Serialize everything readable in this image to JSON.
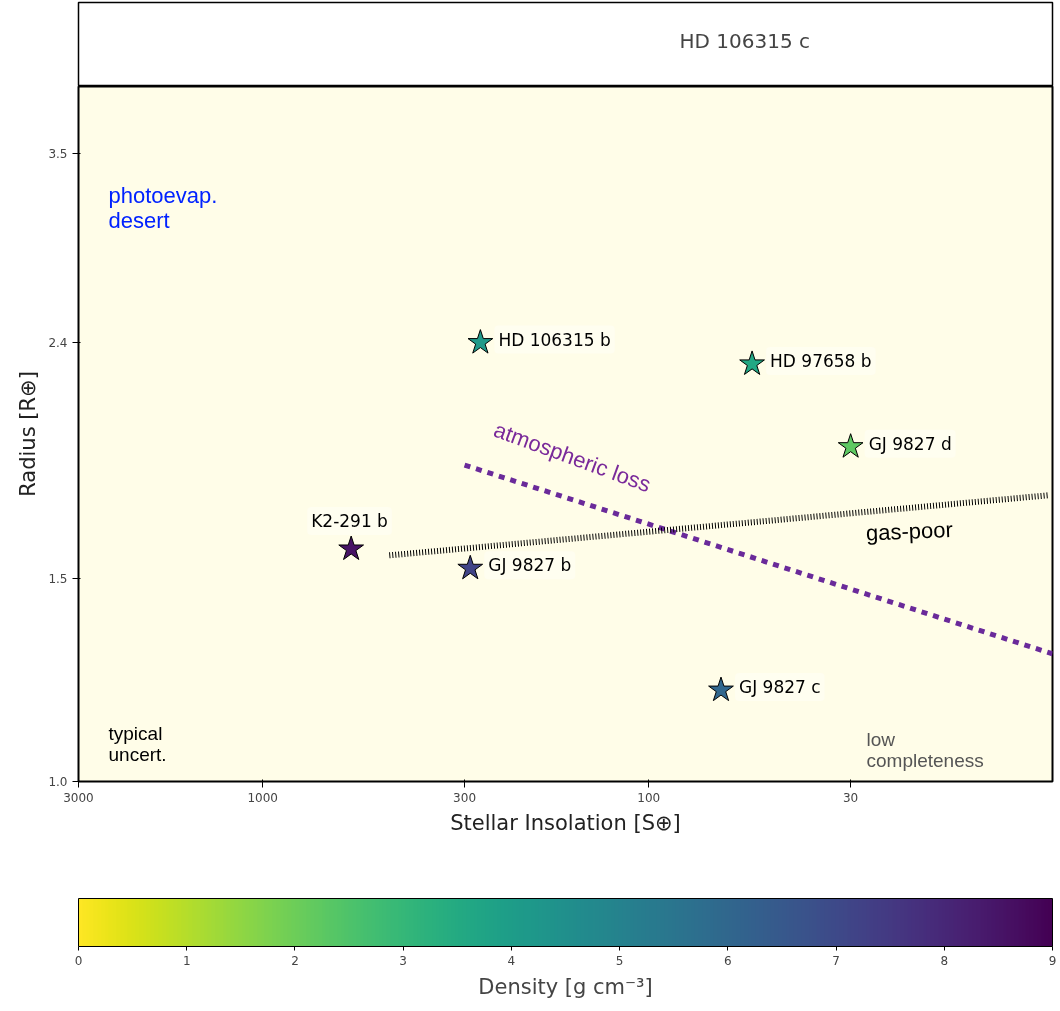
{
  "chart_data": [
    {
      "type": "other",
      "annotations": [
        "HD 106315 c"
      ]
    },
    {
      "type": "scatter",
      "xlabel": "Stellar Insolation [S⊕]",
      "ylabel": "Radius [R⊕]",
      "clabel": "Density [g cm⁻³]",
      "series": [
        {
          "type": "scatter",
          "marker": "star",
          "x": [
            273,
            54,
            30,
            590,
            290,
            65
          ],
          "values": [
            2.4,
            2.3,
            1.95,
            1.59,
            1.53,
            1.2
          ],
          "colors": [
            "#1f9a8a",
            "#22a884",
            "#5ec962",
            "#471365",
            "#414487",
            "#31678e"
          ]
        },
        {
          "type": "line",
          "color": "#6a2a9a",
          "line_style": "dashed",
          "x": [
            300,
            9
          ],
          "values": [
            1.88,
            1.29
          ]
        },
        {
          "type": "line",
          "color": "#000000",
          "line_style": "dotted",
          "x": [
            470,
            9.2
          ],
          "values": [
            1.57,
            1.77
          ]
        }
      ],
      "xlim": [
        3000,
        9
      ],
      "ylim": [
        1.0,
        4.0
      ],
      "xticks": [
        3000,
        1000,
        300,
        100,
        30
      ],
      "yticks": [
        {
          "value": 1,
          "label": "1.0"
        },
        1.5,
        2.4,
        3.5
      ],
      "clim": [
        0,
        9
      ],
      "cticks": [
        0,
        1,
        2,
        3,
        4,
        5,
        6,
        7,
        8,
        9
      ],
      "log": "xy",
      "grid": false,
      "annotations": [
        {
          "text": "HD 106315 b",
          "x": 273,
          "y": 2.4
        },
        {
          "text": "HD 97658 b",
          "x": 54,
          "y": 2.3
        },
        {
          "text": "GJ 9827 d",
          "x": 30,
          "y": 1.95
        },
        {
          "text": "K2-291 b",
          "x": 590,
          "y": 1.59
        },
        {
          "text": "GJ 9827 b",
          "x": 290,
          "y": 1.53
        },
        {
          "text": "GJ 9827 c",
          "x": 65,
          "y": 1.2
        },
        "photoevap.\ndesert",
        "atmospheric loss",
        "gas-poor",
        "typical\nuncert.",
        "low\ncompleteness"
      ]
    }
  ]
}
